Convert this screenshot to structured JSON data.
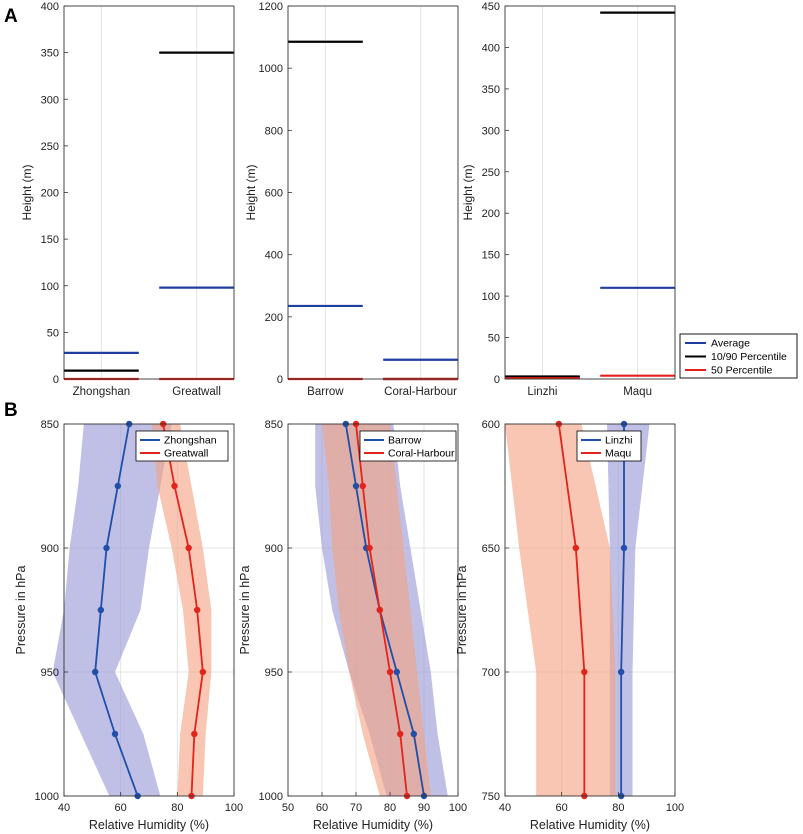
{
  "panel_labels": [
    "A",
    "B"
  ],
  "colors": {
    "average": "#1f3fa0",
    "percentile90": "#000000",
    "percentile50": "#e3201b",
    "blue": "#1f4fa8",
    "red": "#e3241c",
    "blueband": "#9999d6",
    "redband": "#f4a383",
    "grid": "#e4e4e4"
  },
  "chart_data": [
    {
      "type": "bar",
      "id": "A1",
      "ylabel": "Height (m)",
      "ylim": [
        0,
        400
      ],
      "yticks": [
        0,
        50,
        100,
        150,
        200,
        250,
        300,
        350,
        400
      ],
      "categories": [
        "Zhongshan",
        "Greatwall"
      ],
      "series": [
        {
          "name": "Average",
          "values": [
            28,
            98
          ]
        },
        {
          "name": "10/90 Percentile",
          "values": [
            9,
            350
          ]
        },
        {
          "name": "50 Percentile",
          "values": [
            0,
            0
          ]
        }
      ]
    },
    {
      "type": "bar",
      "id": "A2",
      "ylabel": "Height (m)",
      "ylim": [
        0,
        1200
      ],
      "yticks": [
        0,
        200,
        400,
        600,
        800,
        1000,
        1200
      ],
      "categories": [
        "Barrow",
        "Coral-Harbour"
      ],
      "series": [
        {
          "name": "Average",
          "values": [
            235,
            62
          ]
        },
        {
          "name": "10/90 Percentile",
          "values": [
            1085,
            0
          ]
        },
        {
          "name": "50 Percentile",
          "values": [
            0,
            0
          ]
        }
      ]
    },
    {
      "type": "bar",
      "id": "A3",
      "ylabel": "Height (m)",
      "ylim": [
        0,
        450
      ],
      "yticks": [
        0,
        50,
        100,
        150,
        200,
        250,
        300,
        350,
        400,
        450
      ],
      "categories": [
        "Linzhi",
        "Maqu"
      ],
      "legend": [
        "Average",
        "10/90 Percentile",
        "50 Percentile"
      ],
      "series": [
        {
          "name": "Average",
          "values": [
            2,
            110
          ]
        },
        {
          "name": "10/90 Percentile",
          "values": [
            3,
            442
          ]
        },
        {
          "name": "50 Percentile",
          "values": [
            1,
            4
          ]
        }
      ]
    },
    {
      "type": "line",
      "id": "B1",
      "xlabel": "Relative Humidity (%)",
      "ylabel": "Pressure in hPa",
      "xlim": [
        40,
        100
      ],
      "xticks": [
        40,
        60,
        80,
        100
      ],
      "ylim": [
        850,
        1000
      ],
      "yticks": [
        850,
        900,
        950,
        1000
      ],
      "legend": [
        "Zhongshan",
        "Greatwall"
      ],
      "series": [
        {
          "name": "Zhongshan",
          "color": "blue",
          "y": [
            850,
            875,
            900,
            925,
            950,
            975,
            1000
          ],
          "x": [
            63,
            59,
            55,
            53,
            51,
            58,
            66
          ],
          "band_lo": [
            47,
            45,
            42,
            40,
            36,
            46,
            56
          ],
          "band_hi": [
            78,
            74,
            70,
            67,
            58,
            68,
            74
          ]
        },
        {
          "name": "Greatwall",
          "color": "red",
          "y": [
            850,
            875,
            900,
            925,
            950,
            975,
            1000
          ],
          "x": [
            75,
            79,
            84,
            87,
            89,
            86,
            85
          ],
          "band_lo": [
            71,
            73,
            78,
            82,
            84,
            81,
            80
          ],
          "band_hi": [
            81,
            85,
            89,
            92,
            92,
            90,
            89
          ]
        }
      ]
    },
    {
      "type": "line",
      "id": "B2",
      "xlabel": "Relative Humidity (%)",
      "ylabel": "Pressure in hPa",
      "xlim": [
        50,
        100
      ],
      "xticks": [
        50,
        60,
        70,
        80,
        90,
        100
      ],
      "ylim": [
        850,
        1000
      ],
      "yticks": [
        850,
        900,
        950,
        1000
      ],
      "legend": [
        "Barrow",
        "Coral-Harbour"
      ],
      "series": [
        {
          "name": "Barrow",
          "color": "blue",
          "y": [
            850,
            875,
            900,
            925,
            950,
            975,
            1000
          ],
          "x": [
            67,
            70,
            73,
            77,
            82,
            87,
            90
          ],
          "band_lo": [
            58,
            58,
            60,
            63,
            68,
            74,
            79
          ],
          "band_hi": [
            81,
            83,
            86,
            89,
            92,
            94,
            97
          ]
        },
        {
          "name": "Coral-Harbour",
          "color": "red",
          "y": [
            850,
            875,
            900,
            925,
            950,
            975,
            1000
          ],
          "x": [
            70,
            72,
            74,
            77,
            80,
            83,
            85
          ],
          "band_lo": [
            60,
            62,
            63,
            65,
            68,
            72,
            77
          ],
          "band_hi": [
            80,
            82,
            84,
            86,
            88,
            90,
            92
          ]
        }
      ]
    },
    {
      "type": "line",
      "id": "B3",
      "xlabel": "Relative Humidity (%)",
      "ylabel": "Pressure in hPa",
      "xlim": [
        40,
        100
      ],
      "xticks": [
        40,
        60,
        80,
        100
      ],
      "ylim": [
        600,
        750
      ],
      "yticks": [
        600,
        650,
        700,
        750
      ],
      "legend": [
        "Linzhi",
        "Maqu"
      ],
      "series": [
        {
          "name": "Linzhi",
          "color": "blue",
          "y": [
            600,
            650,
            700,
            750
          ],
          "x": [
            82,
            82,
            81,
            81
          ],
          "band_lo": [
            76,
            77,
            77,
            77
          ],
          "band_hi": [
            91,
            86,
            85,
            85
          ]
        },
        {
          "name": "Maqu",
          "color": "red",
          "y": [
            600,
            650,
            700,
            750
          ],
          "x": [
            59,
            65,
            68,
            68
          ],
          "band_lo": [
            40,
            45,
            51,
            51
          ],
          "band_hi": [
            67,
            77,
            79,
            79
          ]
        }
      ]
    }
  ]
}
